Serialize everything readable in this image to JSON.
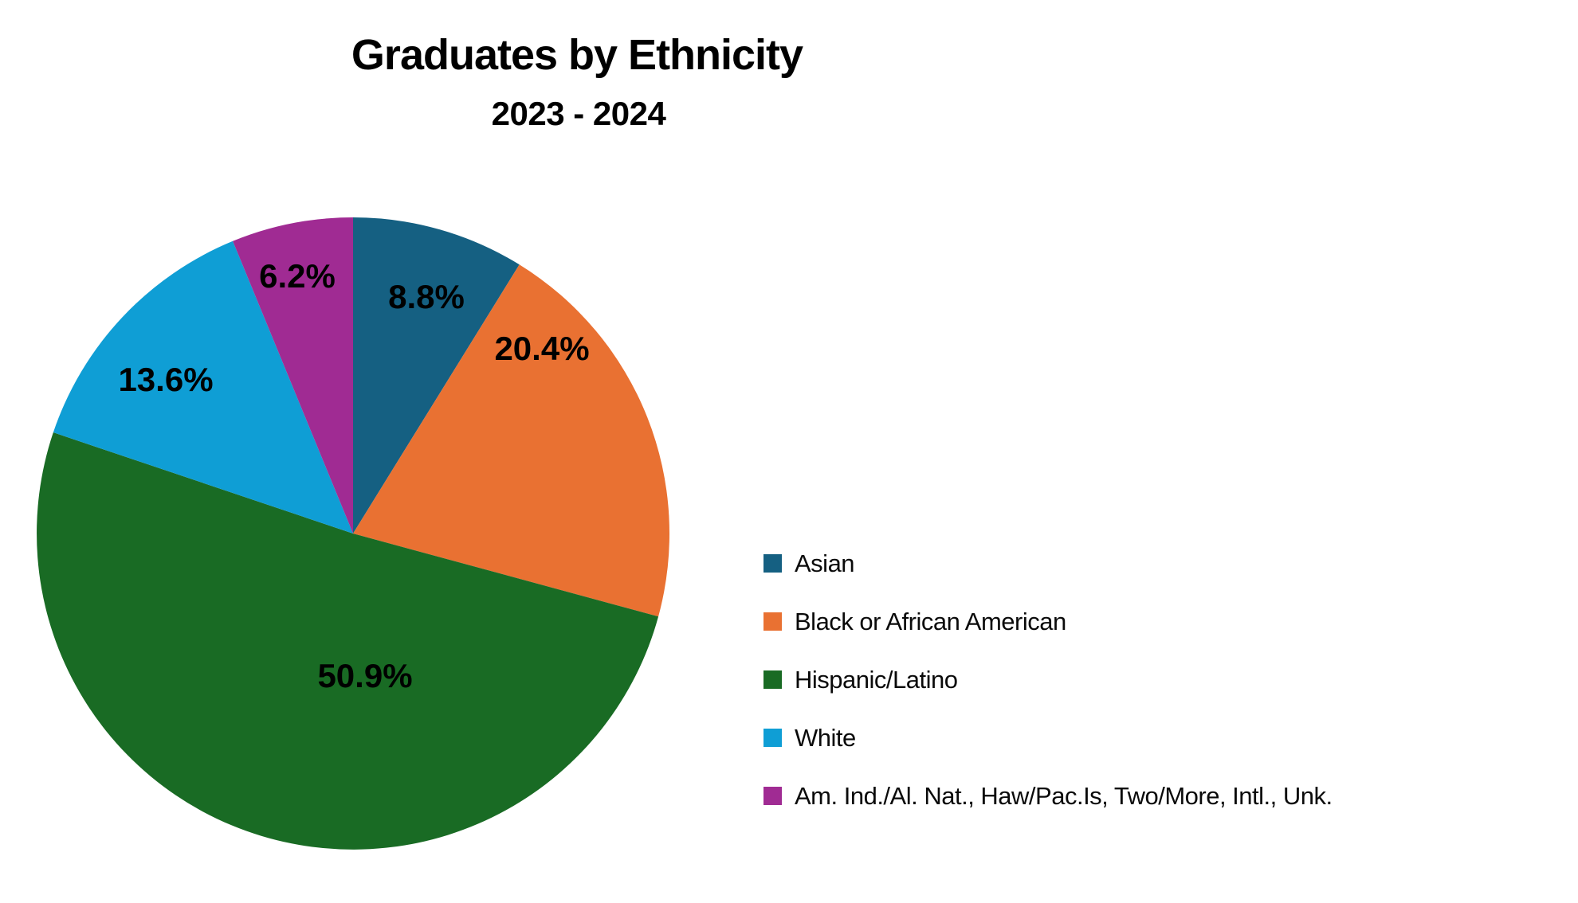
{
  "title": "Graduates by Ethnicity",
  "subtitle": "2023 - 2024",
  "chart_data": {
    "type": "pie",
    "title": "Graduates by Ethnicity",
    "subtitle": "2023 - 2024",
    "categories": [
      "Asian",
      "Black or African American",
      "Hispanic/Latino",
      "White",
      "Am. Ind./Al. Nat., Haw/Pac.Is, Two/More, Intl., Unk."
    ],
    "values": [
      8.8,
      20.4,
      50.9,
      13.6,
      6.2
    ],
    "data_labels": [
      "8.8%",
      "20.4%",
      "50.9%",
      "13.6%",
      "6.2%"
    ],
    "colors": [
      "#156082",
      "#E97132",
      "#196B24",
      "#0F9ED5",
      "#A02B93"
    ],
    "start_angle_deg": 0,
    "direction": "clockwise",
    "legend_position": "right",
    "label_color": "#000000",
    "background": "#FFFFFF"
  }
}
